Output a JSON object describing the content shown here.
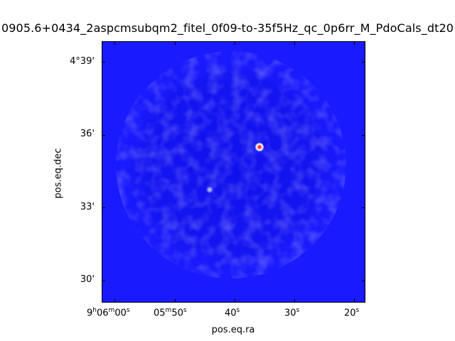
{
  "title": "0905.6+0434_2aspcmsubqm2_fitel_0f09-to-35f5Hz_qc_0p6rr_M_PdoCals_dt20",
  "xlabel": "pos.eq.ra",
  "ylabel": "pos.eq.dec",
  "x_ticks": [
    {
      "h": "9",
      "hs": "h",
      "m": "06",
      "ms": "m",
      "s": "00",
      "ss": "s"
    },
    {
      "h": "",
      "hs": "",
      "m": "05",
      "ms": "m",
      "s": "50",
      "ss": "s"
    },
    {
      "h": "",
      "hs": "",
      "m": "",
      "ms": "",
      "s": "40",
      "ss": "s"
    },
    {
      "h": "",
      "hs": "",
      "m": "",
      "ms": "",
      "s": "30",
      "ss": "s"
    },
    {
      "h": "",
      "hs": "",
      "m": "",
      "ms": "",
      "s": "20",
      "ss": "s"
    }
  ],
  "y_ticks": [
    "4°39'",
    "36'",
    "33'",
    "30'"
  ],
  "colors": {
    "background": "#1a1aff",
    "source_core": "#ff3030",
    "source_halo": "#ffffff"
  }
}
